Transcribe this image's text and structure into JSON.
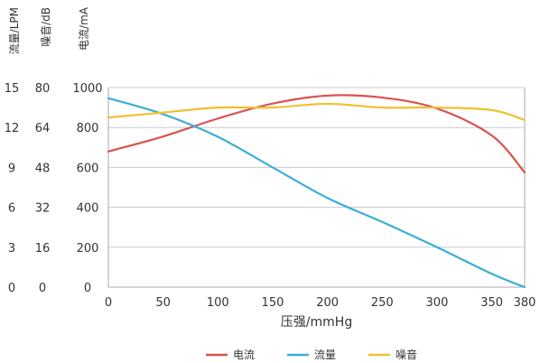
{
  "chart_data": {
    "type": "line",
    "xlabel": "压强/mmHg",
    "x_ticks": [
      "0",
      "50",
      "100",
      "150",
      "200",
      "250",
      "300",
      "350",
      "380"
    ],
    "x": [
      0,
      50,
      100,
      150,
      200,
      250,
      300,
      350,
      380
    ],
    "xlim": [
      0,
      380
    ],
    "axes": [
      {
        "label": "流量/LPM",
        "ticks": [
          "0",
          "3",
          "6",
          "9",
          "12",
          "15"
        ],
        "range": [
          0,
          15
        ]
      },
      {
        "label": "噪音/dB",
        "ticks": [
          "0",
          "16",
          "32",
          "48",
          "64",
          "80"
        ],
        "range": [
          0,
          80
        ]
      },
      {
        "label": "电流/mA",
        "ticks": [
          "0",
          "200",
          "400",
          "600",
          "800",
          "1000"
        ],
        "range": [
          0,
          1000
        ]
      }
    ],
    "grid": true,
    "legend_position": "bottom",
    "series": [
      {
        "name": "电流",
        "color": "#d9534f",
        "axis": 2,
        "values": [
          680,
          755,
          845,
          920,
          960,
          950,
          895,
          760,
          575
        ]
      },
      {
        "name": "流量",
        "color": "#3aaed8",
        "axis": 0,
        "values": [
          14.2,
          13.0,
          11.3,
          9.0,
          6.7,
          4.9,
          3.0,
          1.0,
          0.0
        ]
      },
      {
        "name": "噪音",
        "color": "#f0c030",
        "axis": 1,
        "values": [
          68,
          70,
          72,
          72,
          73.5,
          72,
          72,
          71,
          67
        ]
      }
    ]
  }
}
